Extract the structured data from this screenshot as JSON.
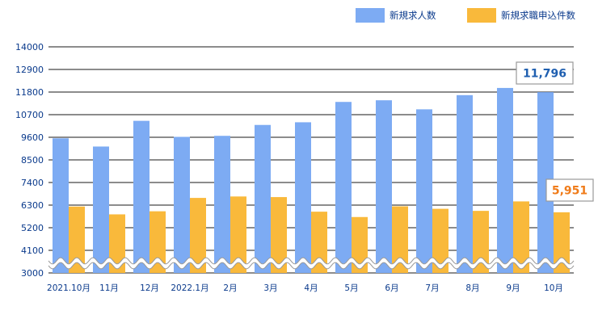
{
  "chart_data": {
    "type": "bar",
    "categories": [
      "2021.10月",
      "11月",
      "12月",
      "2022.1月",
      "2月",
      "3月",
      "4月",
      "5月",
      "6月",
      "7月",
      "8月",
      "9月",
      "10月"
    ],
    "series": [
      {
        "name": "新規求人数",
        "color": "#7dabf3",
        "values": [
          9550,
          9150,
          10400,
          9620,
          9670,
          10200,
          10330,
          11320,
          11400,
          10960,
          11650,
          12000,
          11796
        ]
      },
      {
        "name": "新規求職申込件数",
        "color": "#f9b93b",
        "values": [
          6230,
          5850,
          6000,
          6650,
          6720,
          6690,
          5980,
          5720,
          6240,
          6120,
          6020,
          6480,
          5951
        ]
      }
    ],
    "y_ticks": [
      "3000",
      "4100",
      "5200",
      "6300",
      "7400",
      "8500",
      "9600",
      "10700",
      "11800",
      "12900",
      "14000"
    ],
    "ylim": [
      3000,
      14000
    ],
    "axis_break": true,
    "grid": true,
    "legend": "top-right",
    "callouts": [
      {
        "series": 0,
        "index": 12,
        "label": "11,796",
        "color": "#1f5fb0"
      },
      {
        "series": 1,
        "index": 12,
        "label": "5,951",
        "color": "#f07c1a"
      }
    ]
  }
}
